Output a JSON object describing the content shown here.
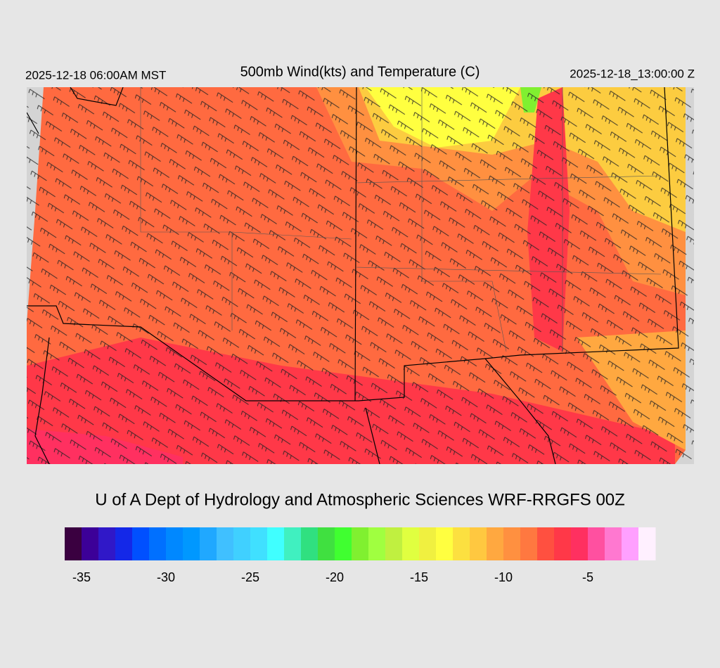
{
  "header": {
    "left": "2025-12-18 06:00AM MST",
    "title": "500mb Wind(kts) and Temperature (C)",
    "right": "2025-12-18_13:00:00 Z"
  },
  "footer": {
    "title": "U of A Dept of Hydrology and Atmospheric Sciences WRF-RRGFS 00Z"
  },
  "colorbar": {
    "range": [
      -36,
      -1
    ],
    "ticks": [
      -35,
      -30,
      -25,
      -20,
      -15,
      -10,
      -5
    ],
    "colors": [
      "#3a0040",
      "#3c0098",
      "#3018c8",
      "#1428e8",
      "#0050ff",
      "#0070ff",
      "#0088ff",
      "#0098ff",
      "#20a8ff",
      "#40c0ff",
      "#40d0ff",
      "#40e0ff",
      "#40ffff",
      "#40f0c0",
      "#30e080",
      "#40e040",
      "#40ff30",
      "#80f030",
      "#a0ff40",
      "#c0f040",
      "#e0ff40",
      "#f0f040",
      "#ffff40",
      "#fce040",
      "#ffc840",
      "#ffa840",
      "#ff9040",
      "#ff7840",
      "#ff5040",
      "#ff3848",
      "#ff3060",
      "#ff50a0",
      "#ff78d0",
      "#ffa0ff",
      "#fff0ff"
    ]
  }
}
